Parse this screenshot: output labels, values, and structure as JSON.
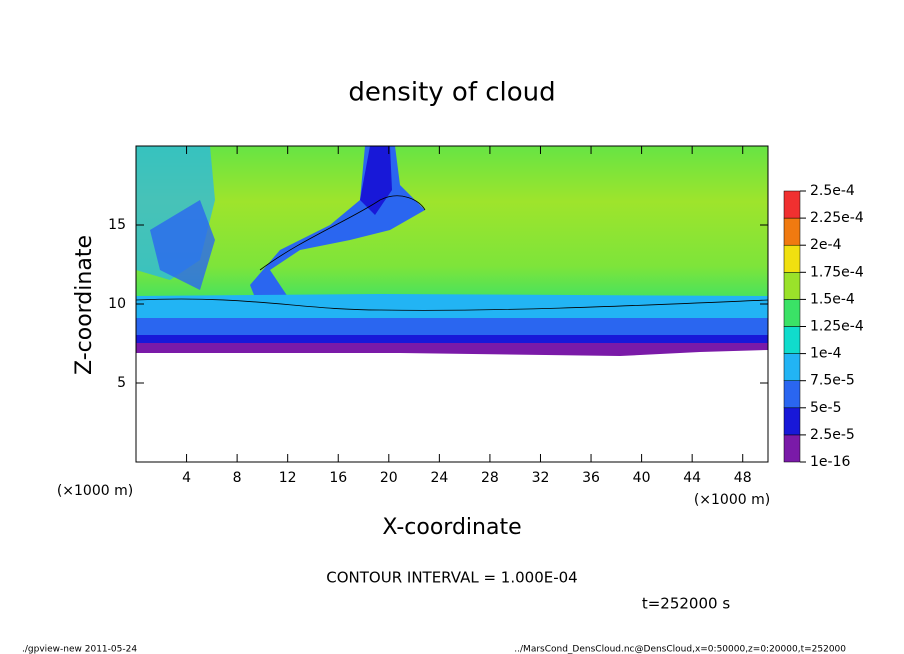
{
  "chart_data": {
    "type": "contour",
    "title": "density of cloud",
    "xlabel": "X-coordinate",
    "ylabel": "Z-coordinate",
    "x_unit_label": "(×1000 m)",
    "y_unit_label": "(×1000 m)",
    "xlim": [
      0,
      50
    ],
    "xticks": [
      4,
      8,
      12,
      16,
      20,
      24,
      28,
      32,
      36,
      40,
      44,
      48
    ],
    "ylim": [
      0,
      20
    ],
    "yticks": [
      5,
      10,
      15
    ],
    "colorbar": {
      "levels": [
        {
          "value": 1e-16,
          "label": "1e-16"
        },
        {
          "value": 2.5e-05,
          "label": "2.5e-5"
        },
        {
          "value": 5e-05,
          "label": "5e-5"
        },
        {
          "value": 7.5e-05,
          "label": "7.5e-5"
        },
        {
          "value": 0.0001,
          "label": "1e-4"
        },
        {
          "value": 0.000125,
          "label": "1.25e-4"
        },
        {
          "value": 0.00015,
          "label": "1.5e-4"
        },
        {
          "value": 0.000175,
          "label": "1.75e-4"
        },
        {
          "value": 0.0002,
          "label": "2e-4"
        },
        {
          "value": 0.000225,
          "label": "2.25e-4"
        },
        {
          "value": 0.00025,
          "label": "2.5e-4"
        }
      ],
      "colors": [
        "#7a1aa8",
        "#1818d8",
        "#2a66f0",
        "#22b4f4",
        "#10dccc",
        "#3ae266",
        "#9ae22a",
        "#f0e010",
        "#f07a10",
        "#f03030"
      ]
    },
    "contour_interval": "CONTOUR INTERVAL = 1.000E-04",
    "time_label": "t=252000 s",
    "footer_left": "./gpview-new   2011-05-24",
    "footer_right": "../MarsCond_DensCloud.nc@DensCloud,x=0:50000,z=0:20000,t=252000"
  }
}
